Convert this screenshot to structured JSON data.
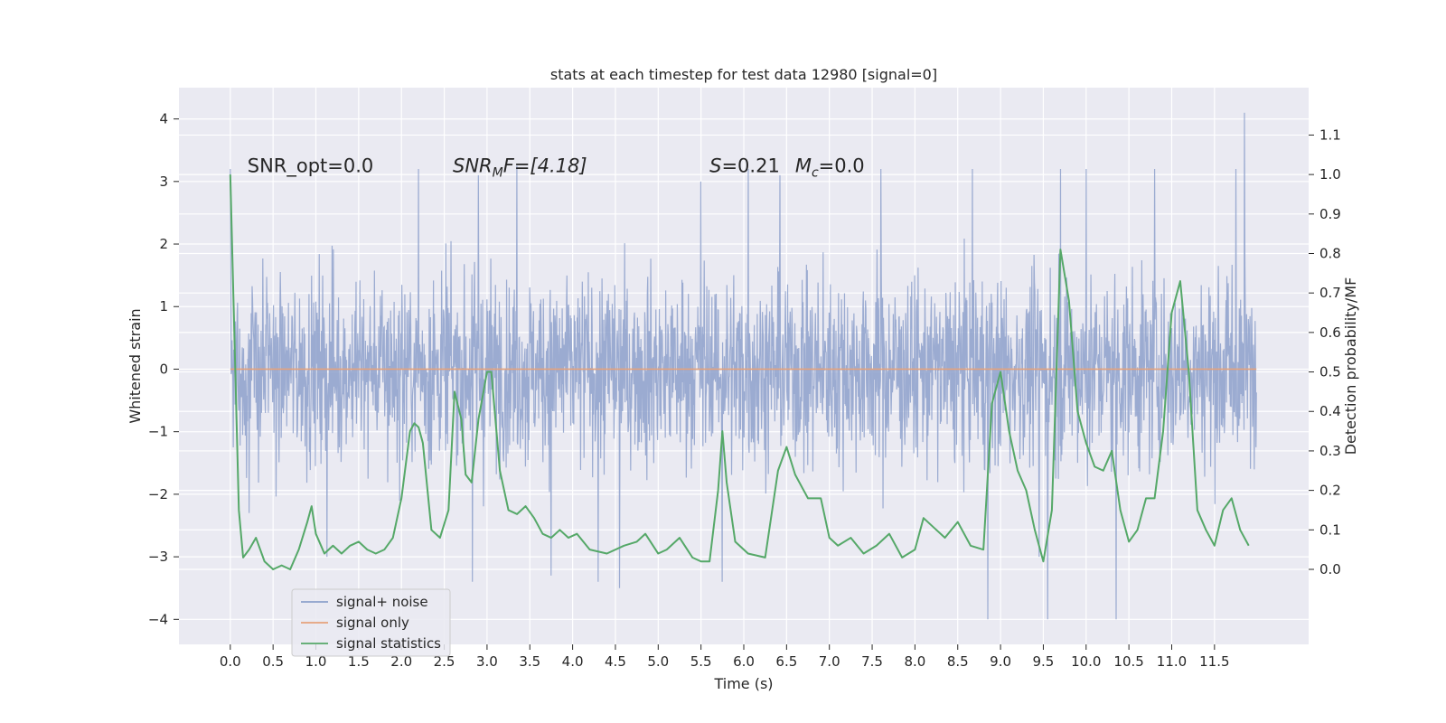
{
  "chart_data": {
    "type": "line",
    "title": "stats at each timestep for test data 12980 [signal=0]",
    "xlabel": "Time (s)",
    "ylabel": "Whitened strain",
    "ylabel_right": "Detection probability/MF",
    "xlim": [
      -0.6,
      12.6
    ],
    "ylim": [
      -4.4,
      4.5
    ],
    "ylim_right": [
      -0.19,
      1.22
    ],
    "x_ticks": [
      "0.0",
      "0.5",
      "1.0",
      "1.5",
      "2.0",
      "2.5",
      "3.0",
      "3.5",
      "4.0",
      "4.5",
      "5.0",
      "5.5",
      "6.0",
      "6.5",
      "7.0",
      "7.5",
      "8.0",
      "8.5",
      "9.0",
      "9.5",
      "10.0",
      "10.5",
      "11.0",
      "11.5"
    ],
    "y_ticks": [
      "4",
      "3",
      "2",
      "1",
      "0",
      "−1",
      "−2",
      "−3",
      "−4"
    ],
    "y_ticks_right": [
      "1.1",
      "1.0",
      "0.9",
      "0.8",
      "0.7",
      "0.6",
      "0.5",
      "0.4",
      "0.3",
      "0.2",
      "0.1",
      "0.0"
    ],
    "grid": true,
    "legend_position": "lower-left",
    "annotations": {
      "snr_opt": "SNR_opt=0.0",
      "snr_mf_name": "SNR",
      "snr_mf_sub": "M",
      "snr_mf_rest": "F=[4.18]",
      "s_name": "S",
      "s_value": "=0.21",
      "mc_name": "M",
      "mc_sub": "c",
      "mc_value": "=0.0"
    },
    "series": [
      {
        "name": "signal+ noise",
        "color": "#8da0cb",
        "axis": "left",
        "description": "whitened noise, roughly within ±2.7 with spikes up to 4.1 and down to -4.0",
        "spikes": [
          [
            0.0,
            3.2
          ],
          [
            0.22,
            -2.3
          ],
          [
            1.13,
            -3.0
          ],
          [
            2.2,
            3.2
          ],
          [
            2.83,
            -3.4
          ],
          [
            2.9,
            3.1
          ],
          [
            3.35,
            3.25
          ],
          [
            3.75,
            -3.3
          ],
          [
            4.3,
            -3.4
          ],
          [
            4.55,
            -3.5
          ],
          [
            5.5,
            3.0
          ],
          [
            5.75,
            -3.4
          ],
          [
            6.05,
            3.2
          ],
          [
            6.42,
            3.1
          ],
          [
            7.6,
            3.2
          ],
          [
            8.67,
            3.2
          ],
          [
            8.85,
            -4.0
          ],
          [
            9.45,
            -3.0
          ],
          [
            9.55,
            -4.0
          ],
          [
            9.7,
            3.2
          ],
          [
            10.0,
            3.2
          ],
          [
            10.35,
            -4.0
          ],
          [
            10.8,
            3.2
          ],
          [
            11.85,
            4.1
          ],
          [
            11.75,
            3.2
          ]
        ]
      },
      {
        "name": "signal only",
        "color": "#e5a27b",
        "axis": "left",
        "x": [
          0.0,
          11.99
        ],
        "y": [
          0.0,
          0.0
        ]
      },
      {
        "name": "signal statistics",
        "color": "#55a868",
        "axis": "right",
        "x": [
          0.0,
          0.1,
          0.15,
          0.22,
          0.3,
          0.4,
          0.5,
          0.6,
          0.7,
          0.8,
          0.9,
          0.95,
          1.0,
          1.1,
          1.2,
          1.3,
          1.4,
          1.5,
          1.6,
          1.7,
          1.8,
          1.9,
          2.0,
          2.1,
          2.15,
          2.2,
          2.25,
          2.35,
          2.45,
          2.55,
          2.62,
          2.7,
          2.75,
          2.82,
          2.9,
          3.0,
          3.05,
          3.15,
          3.25,
          3.35,
          3.45,
          3.55,
          3.65,
          3.75,
          3.85,
          3.95,
          4.05,
          4.2,
          4.4,
          4.6,
          4.75,
          4.85,
          5.0,
          5.1,
          5.25,
          5.4,
          5.5,
          5.6,
          5.7,
          5.75,
          5.8,
          5.9,
          6.05,
          6.25,
          6.4,
          6.5,
          6.6,
          6.75,
          6.9,
          7.0,
          7.1,
          7.25,
          7.4,
          7.55,
          7.7,
          7.85,
          8.0,
          8.1,
          8.25,
          8.35,
          8.5,
          8.65,
          8.8,
          8.9,
          9.0,
          9.1,
          9.2,
          9.3,
          9.4,
          9.5,
          9.6,
          9.7,
          9.8,
          9.9,
          10.0,
          10.1,
          10.2,
          10.3,
          10.4,
          10.5,
          10.6,
          10.7,
          10.8,
          10.9,
          11.0,
          11.1,
          11.2,
          11.3,
          11.4,
          11.5,
          11.6,
          11.7,
          11.8,
          11.9
        ],
        "y": [
          1.0,
          0.15,
          0.03,
          0.05,
          0.08,
          0.02,
          0.0,
          0.01,
          0.0,
          0.05,
          0.12,
          0.16,
          0.09,
          0.04,
          0.06,
          0.04,
          0.06,
          0.07,
          0.05,
          0.04,
          0.05,
          0.08,
          0.18,
          0.35,
          0.37,
          0.36,
          0.32,
          0.1,
          0.08,
          0.15,
          0.45,
          0.38,
          0.24,
          0.22,
          0.38,
          0.5,
          0.5,
          0.25,
          0.15,
          0.14,
          0.16,
          0.13,
          0.09,
          0.08,
          0.1,
          0.08,
          0.09,
          0.05,
          0.04,
          0.06,
          0.07,
          0.09,
          0.04,
          0.05,
          0.08,
          0.03,
          0.02,
          0.02,
          0.2,
          0.35,
          0.22,
          0.07,
          0.04,
          0.03,
          0.25,
          0.31,
          0.24,
          0.18,
          0.18,
          0.08,
          0.06,
          0.08,
          0.04,
          0.06,
          0.09,
          0.03,
          0.05,
          0.13,
          0.1,
          0.08,
          0.12,
          0.06,
          0.05,
          0.42,
          0.5,
          0.35,
          0.25,
          0.2,
          0.1,
          0.02,
          0.15,
          0.81,
          0.68,
          0.4,
          0.32,
          0.26,
          0.25,
          0.3,
          0.15,
          0.07,
          0.1,
          0.18,
          0.18,
          0.35,
          0.65,
          0.73,
          0.5,
          0.15,
          0.1,
          0.06,
          0.15,
          0.18,
          0.1,
          0.06
        ]
      }
    ]
  }
}
